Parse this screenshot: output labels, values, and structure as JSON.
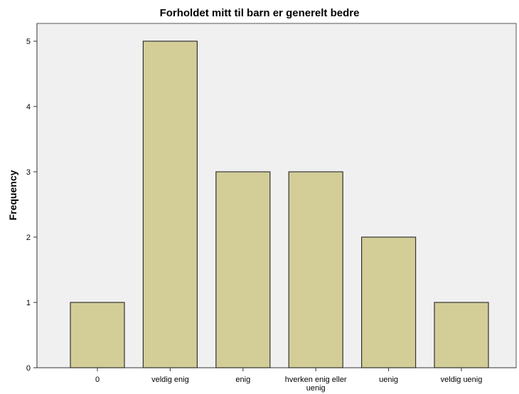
{
  "chart_data": {
    "type": "bar",
    "title": "Forholdet mitt til barn er generelt bedre",
    "xlabel": "",
    "ylabel": "Frequency",
    "categories": [
      "0",
      "veldig enig",
      "enig",
      "hverken enig eller uenig",
      "uenig",
      "veldig uenig"
    ],
    "values": [
      1,
      5,
      3,
      3,
      2,
      1
    ],
    "ylim": [
      0,
      5.5
    ],
    "yticks": [
      0,
      1,
      2,
      3,
      4,
      5
    ],
    "grid": false,
    "legend": "none",
    "colors": {
      "bar_fill": "#d3ce97",
      "bar_stroke": "#333333",
      "plot_bg": "#f0f0f0",
      "axis": "#333333"
    }
  }
}
